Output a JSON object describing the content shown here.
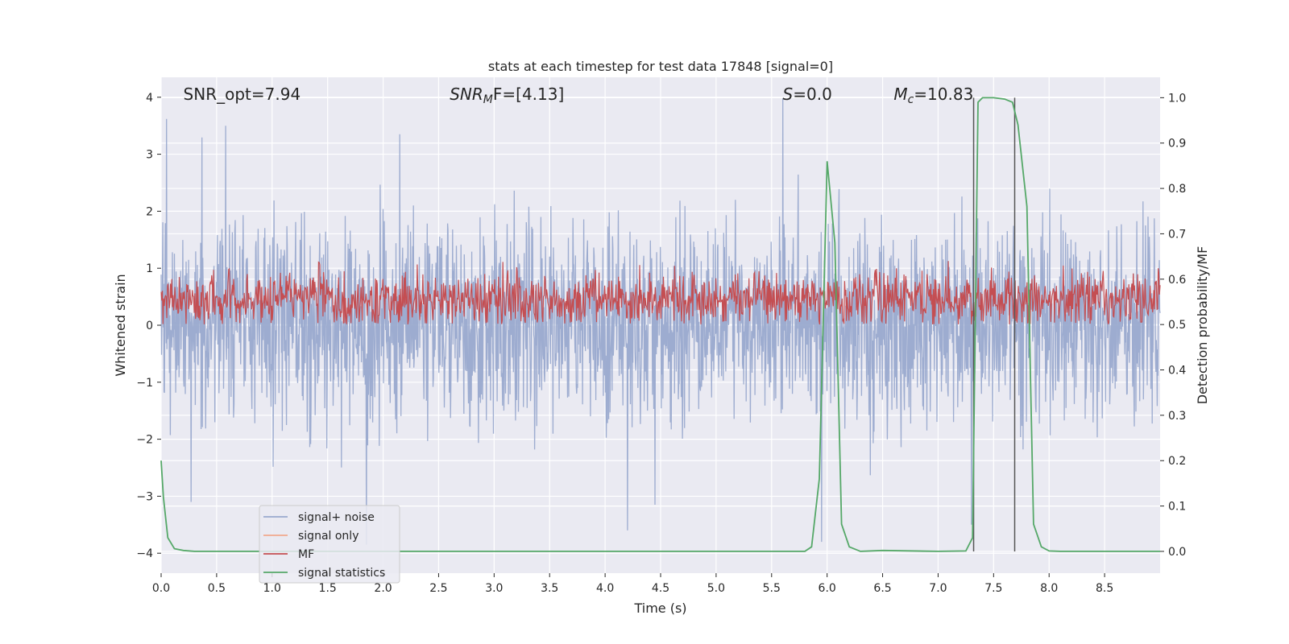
{
  "chart_data": {
    "type": "line",
    "title": "stats at each timestep for test data 17848 [signal=0]",
    "xlabel": "Time (s)",
    "ylabel": "Whitened strain",
    "y2label": "Detection probability/MF",
    "xlim": [
      0.0,
      9.0
    ],
    "ylim": [
      -4.35,
      4.35
    ],
    "y2lim": [
      -0.048,
      1.045
    ],
    "xticks": [
      0.0,
      0.5,
      1.0,
      1.5,
      2.0,
      2.5,
      3.0,
      3.5,
      4.0,
      4.5,
      5.0,
      5.5,
      6.0,
      6.5,
      7.0,
      7.5,
      8.0,
      8.5
    ],
    "xtick_labels": [
      "0.0",
      "0.5",
      "1.0",
      "1.5",
      "2.0",
      "2.5",
      "3.0",
      "3.5",
      "4.0",
      "4.5",
      "5.0",
      "5.5",
      "6.0",
      "6.5",
      "7.0",
      "7.5",
      "8.0",
      "8.5"
    ],
    "yticks": [
      -4,
      -3,
      -2,
      -1,
      0,
      1,
      2,
      3,
      4
    ],
    "ytick_labels": [
      "−4",
      "−3",
      "−2",
      "−1",
      "0",
      "1",
      "2",
      "3",
      "4"
    ],
    "y2ticks": [
      0.0,
      0.1,
      0.2,
      0.3,
      0.4,
      0.5,
      0.6,
      0.7,
      0.8,
      0.9,
      1.0
    ],
    "y2tick_labels": [
      "0.0",
      "0.1",
      "0.2",
      "0.3",
      "0.4",
      "0.5",
      "0.6",
      "0.7",
      "0.8",
      "0.9",
      "1.0"
    ],
    "grid": true,
    "legend_position": "lower-left",
    "annotations": [
      {
        "text": "SNR_opt=7.94",
        "x": 0.2
      },
      {
        "text": "SNR_MF=[4.13]",
        "x": 2.6,
        "math": "SNR",
        "sub": "M",
        "rest": "F=[4.13]"
      },
      {
        "text": "S=0.0",
        "x": 5.6,
        "math": "S",
        "sub": "",
        "rest": "=0.0"
      },
      {
        "text": "M_c=10.83",
        "x": 6.6,
        "math": "M",
        "sub": "c",
        "rest": "=10.83"
      }
    ],
    "vlines": [
      7.32,
      7.69
    ],
    "series": [
      {
        "name": "signal+ noise",
        "color": "#99a9cd",
        "axis": "left",
        "description": "whitened noise, approximately N(0, 0.85), sampled across 0–9 s",
        "sigma": 0.85,
        "spikes": [
          [
            0.05,
            3.62
          ],
          [
            0.58,
            3.5
          ],
          [
            2.15,
            3.35
          ],
          [
            5.6,
            3.98
          ],
          [
            0.27,
            -3.1
          ],
          [
            1.85,
            -3.85
          ],
          [
            4.2,
            -3.6
          ],
          [
            4.45,
            -3.15
          ],
          [
            5.95,
            -3.8
          ],
          [
            7.3,
            -3.5
          ]
        ]
      },
      {
        "name": "signal only",
        "color": "#f0a98e",
        "axis": "left",
        "values": []
      },
      {
        "name": "MF",
        "color": "#c44e52",
        "axis": "right",
        "description": "matched-filter output fluctuating between about 0.5 and 0.63",
        "mean": 0.555,
        "spread": 0.03
      },
      {
        "name": "signal statistics",
        "color": "#55a868",
        "axis": "right",
        "x": [
          0.0,
          0.02,
          0.06,
          0.12,
          0.2,
          0.3,
          0.5,
          1.0,
          2.0,
          3.0,
          4.0,
          5.0,
          5.5,
          5.8,
          5.86,
          5.93,
          6.0,
          6.07,
          6.13,
          6.2,
          6.3,
          6.5,
          7.0,
          7.25,
          7.31,
          7.36,
          7.4,
          7.5,
          7.6,
          7.67,
          7.72,
          7.8,
          7.86,
          7.93,
          8.0,
          8.1,
          8.5,
          9.0
        ],
        "y": [
          0.2,
          0.12,
          0.03,
          0.006,
          0.002,
          0.0,
          0.0,
          0.0,
          0.0,
          0.0,
          0.0,
          0.0,
          0.0,
          0.0,
          0.01,
          0.16,
          0.86,
          0.68,
          0.06,
          0.01,
          0.0,
          0.002,
          0.0,
          0.001,
          0.03,
          0.99,
          1.0,
          1.0,
          0.997,
          0.99,
          0.94,
          0.76,
          0.06,
          0.01,
          0.001,
          0.0,
          0.0,
          0.0
        ]
      }
    ]
  }
}
